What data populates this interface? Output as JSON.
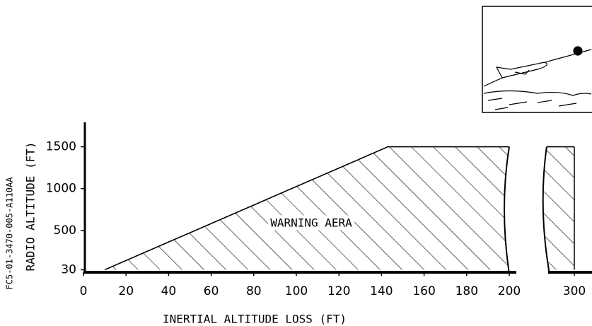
{
  "chart_data": {
    "type": "area",
    "y_label": "RADIO ALTITUDE (FT)",
    "x_label": "INERTIAL ALTITUDE LOSS (FT)",
    "annotation": "WARNING AERA",
    "figure_id": "FC5-01-3470-005-A110AA",
    "series": [
      {
        "color": "#000000",
        "x": [
          10,
          143,
          200
        ],
        "values": [
          30,
          1500,
          1500
        ]
      },
      {
        "color": "#000000",
        "x": [
          287,
          300
        ],
        "values": [
          1500,
          1500
        ]
      }
    ],
    "xlim": [
      0,
      300
    ],
    "xticks": [
      0,
      20,
      40,
      60,
      80,
      100,
      120,
      140,
      160,
      180,
      200,
      300
    ],
    "ylim": [
      0,
      1750
    ],
    "yticks": [
      30,
      500,
      1000,
      1500
    ],
    "axis_break": [
      200,
      287
    ]
  }
}
